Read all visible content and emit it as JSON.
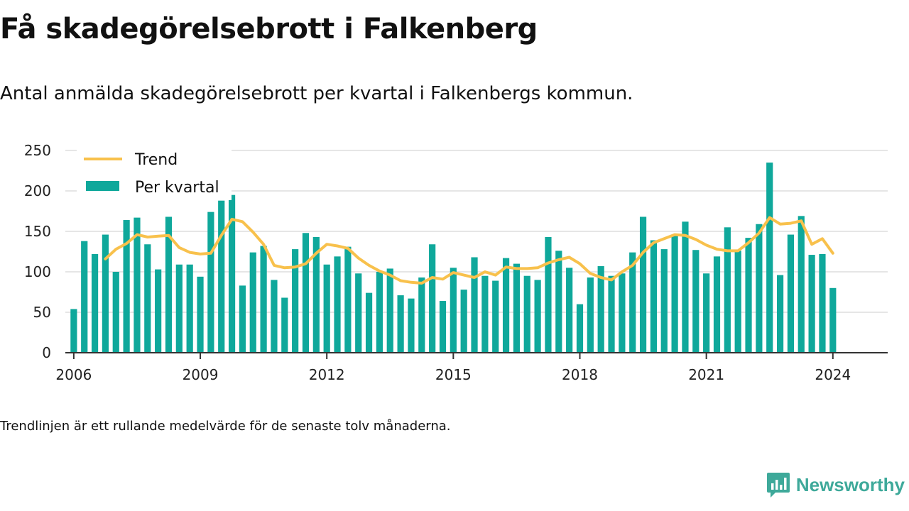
{
  "header": {
    "title": "Få skadegörelsebrott i Falkenberg",
    "subtitle": "Antal anmälda skadegörelsebrott per kvartal i Falkenbergs kommun."
  },
  "footer": {
    "note": "Trendlinjen är ett rullande medelvärde för de senaste tolv månaderna.",
    "brand": "Newsworthy",
    "brand_icon": "bar-chart-icon"
  },
  "colors": {
    "bars": "#0fa89b",
    "trend": "#f8c14c",
    "grid": "#dddddd",
    "axis": "#333333",
    "brand": "#3ea99a"
  },
  "chart_data": {
    "type": "bar",
    "ylim": [
      0,
      250
    ],
    "yticks": [
      0,
      50,
      100,
      150,
      200,
      250
    ],
    "xlim": [
      2005.8,
      2025.3
    ],
    "xticks": [
      2006,
      2009,
      2012,
      2015,
      2018,
      2021,
      2024
    ],
    "grid": true,
    "legend_position": "top-left",
    "x": [
      2006.0,
      2006.25,
      2006.5,
      2006.75,
      2007.0,
      2007.25,
      2007.5,
      2007.75,
      2008.0,
      2008.25,
      2008.5,
      2008.75,
      2009.0,
      2009.25,
      2009.5,
      2009.75,
      2010.0,
      2010.25,
      2010.5,
      2010.75,
      2011.0,
      2011.25,
      2011.5,
      2011.75,
      2012.0,
      2012.25,
      2012.5,
      2012.75,
      2013.0,
      2013.25,
      2013.5,
      2013.75,
      2014.0,
      2014.25,
      2014.5,
      2014.75,
      2015.0,
      2015.25,
      2015.5,
      2015.75,
      2016.0,
      2016.25,
      2016.5,
      2016.75,
      2017.0,
      2017.25,
      2017.5,
      2017.75,
      2018.0,
      2018.25,
      2018.5,
      2018.75,
      2019.0,
      2019.25,
      2019.5,
      2019.75,
      2020.0,
      2020.25,
      2020.5,
      2020.75,
      2021.0,
      2021.25,
      2021.5,
      2021.75,
      2022.0,
      2022.25,
      2022.5,
      2022.75,
      2023.0,
      2023.25,
      2023.5,
      2023.75,
      2024.0
    ],
    "series": [
      {
        "name": "Per kvartal",
        "type": "bar",
        "values": [
          54,
          138,
          122,
          146,
          100,
          164,
          167,
          134,
          103,
          168,
          109,
          109,
          94,
          174,
          188,
          195,
          83,
          124,
          132,
          90,
          68,
          128,
          148,
          143,
          109,
          119,
          131,
          98,
          74,
          100,
          104,
          71,
          67,
          93,
          134,
          64,
          105,
          78,
          118,
          95,
          89,
          117,
          110,
          95,
          90,
          143,
          126,
          105,
          60,
          93,
          107,
          95,
          98,
          124,
          168,
          139,
          128,
          145,
          162,
          127,
          98,
          119,
          155,
          126,
          142,
          159,
          235,
          96,
          146,
          169,
          121,
          122,
          80
        ]
      },
      {
        "name": "Trend",
        "type": "line",
        "values": [
          null,
          null,
          null,
          116,
          128,
          135,
          146,
          143,
          144,
          145,
          130,
          124,
          122,
          123,
          145,
          165,
          162,
          149,
          134,
          108,
          105,
          106,
          110,
          123,
          134,
          132,
          129,
          117,
          108,
          101,
          96,
          89,
          87,
          86,
          93,
          91,
          99,
          96,
          93,
          100,
          96,
          106,
          104,
          104,
          105,
          111,
          115,
          118,
          110,
          98,
          93,
          90,
          100,
          108,
          124,
          136,
          141,
          146,
          145,
          140,
          133,
          128,
          126,
          126,
          136,
          148,
          167,
          159,
          160,
          163,
          134,
          141,
          123
        ]
      }
    ]
  }
}
